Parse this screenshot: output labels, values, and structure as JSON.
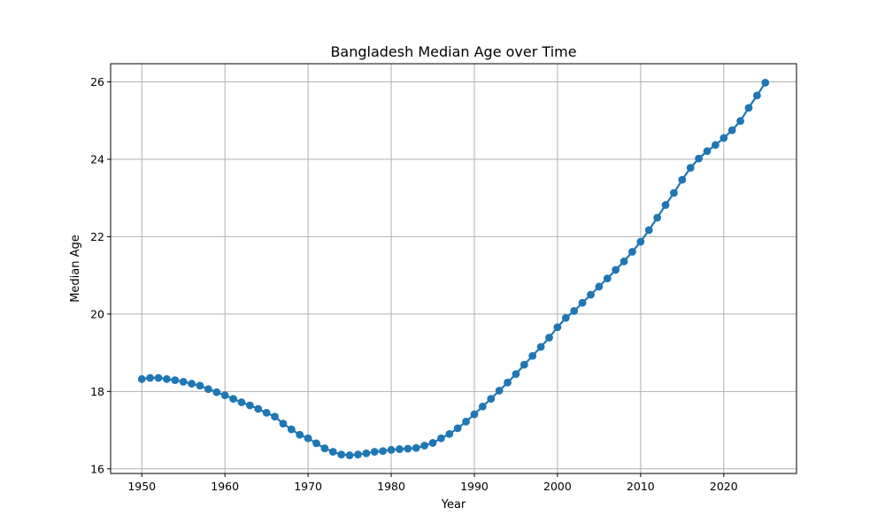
{
  "chart_data": {
    "type": "line",
    "title": "Bangladesh Median Age over Time",
    "xlabel": "Year",
    "ylabel": "Median Age",
    "xlim": [
      1946.25,
      2028.75
    ],
    "ylim": [
      15.88,
      26.47
    ],
    "x_ticks": [
      1950,
      1960,
      1970,
      1980,
      1990,
      2000,
      2010,
      2020
    ],
    "y_ticks": [
      16,
      18,
      20,
      22,
      24,
      26
    ],
    "grid": true,
    "marker": "circle",
    "series_color": "#1f77b4",
    "grid_color": "#b0b0b0",
    "series": [
      {
        "x": [
          1950,
          1951,
          1952,
          1953,
          1954,
          1955,
          1956,
          1957,
          1958,
          1959,
          1960,
          1961,
          1962,
          1963,
          1964,
          1965,
          1966,
          1967,
          1968,
          1969,
          1970,
          1971,
          1972,
          1973,
          1974,
          1975,
          1976,
          1977,
          1978,
          1979,
          1980,
          1981,
          1982,
          1983,
          1984,
          1985,
          1986,
          1987,
          1988,
          1989,
          1990,
          1991,
          1992,
          1993,
          1994,
          1995,
          1996,
          1997,
          1998,
          1999,
          2000,
          2001,
          2002,
          2003,
          2004,
          2005,
          2006,
          2007,
          2008,
          2009,
          2010,
          2011,
          2012,
          2013,
          2014,
          2015,
          2016,
          2017,
          2018,
          2019,
          2020,
          2021,
          2022,
          2023,
          2024,
          2025
        ],
        "y": [
          18.32,
          18.35,
          18.35,
          18.32,
          18.29,
          18.25,
          18.2,
          18.15,
          18.06,
          17.98,
          17.9,
          17.81,
          17.72,
          17.64,
          17.55,
          17.45,
          17.35,
          17.17,
          17.02,
          16.88,
          16.79,
          16.66,
          16.53,
          16.44,
          16.37,
          16.35,
          16.37,
          16.4,
          16.44,
          16.46,
          16.49,
          16.51,
          16.52,
          16.54,
          16.6,
          16.67,
          16.79,
          16.9,
          17.05,
          17.22,
          17.41,
          17.61,
          17.81,
          18.02,
          18.23,
          18.45,
          18.69,
          18.92,
          19.15,
          19.39,
          19.66,
          19.9,
          20.08,
          20.29,
          20.5,
          20.71,
          20.92,
          21.14,
          21.36,
          21.61,
          21.87,
          22.17,
          22.49,
          22.82,
          23.13,
          23.47,
          23.78,
          24.02,
          24.21,
          24.37,
          24.55,
          24.75,
          24.99,
          25.33,
          25.65,
          25.98
        ]
      }
    ]
  }
}
